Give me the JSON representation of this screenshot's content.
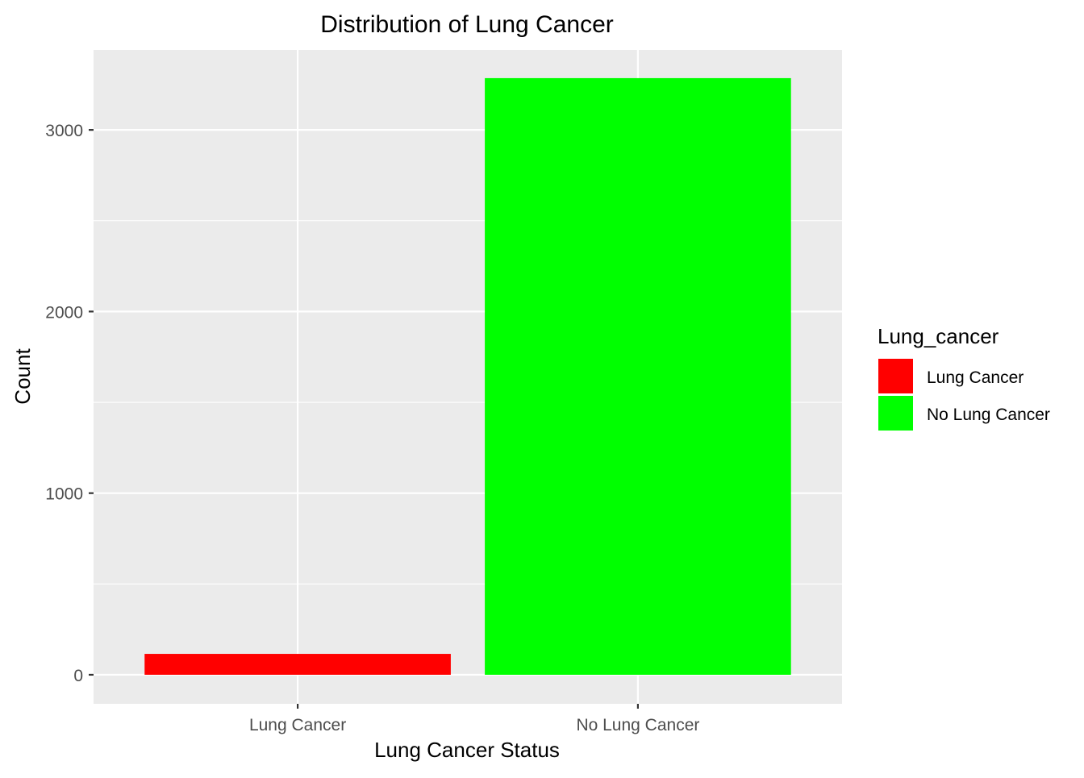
{
  "chart_data": {
    "type": "bar",
    "title": "Distribution of Lung Cancer",
    "xlabel": "Lung Cancer Status",
    "ylabel": "Count",
    "categories": [
      "Lung Cancer",
      "No Lung Cancer"
    ],
    "values": [
      115,
      3285
    ],
    "colors": [
      "#FF0000",
      "#00FF00"
    ],
    "ylim": [
      -160,
      3440
    ],
    "yticks": [
      0,
      1000,
      2000,
      3000
    ],
    "yminor": [
      500,
      1500,
      2500
    ],
    "grid": true,
    "panel_background": "#EBEBEB",
    "grid_color": "#FFFFFF",
    "legend": {
      "title": "Lung_cancer",
      "position": "right",
      "entries": [
        {
          "label": "Lung Cancer",
          "color": "#FF0000"
        },
        {
          "label": "No Lung Cancer",
          "color": "#00FF00"
        }
      ]
    }
  }
}
